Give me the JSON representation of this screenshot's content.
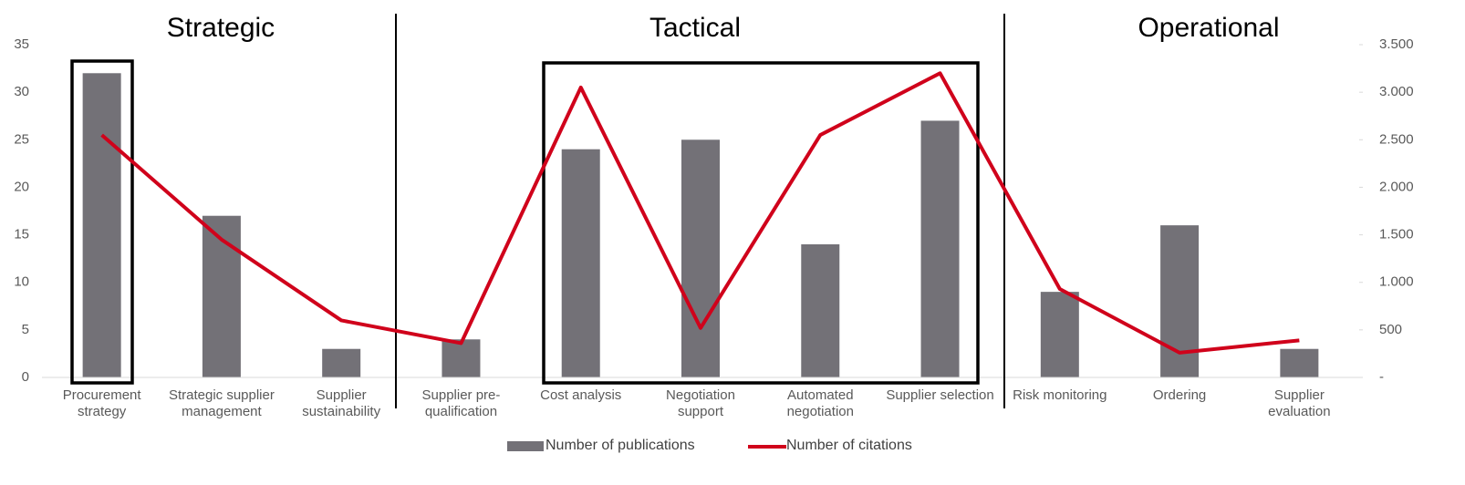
{
  "chart_data": {
    "type": "bar",
    "annotations": [
      "Strategic",
      "Tactical",
      "Operational"
    ],
    "categories": [
      "Procurement strategy",
      "Strategic supplier management",
      "Supplier sustainability",
      "Supplier pre-qualification",
      "Cost analysis",
      "Negotiation support",
      "Automated negotiation",
      "Supplier selection",
      "Risk monitoring",
      "Ordering",
      "Supplier evaluation"
    ],
    "series": [
      {
        "name": "Number of publications",
        "type": "bar",
        "color": "#737177",
        "values": [
          32,
          17,
          3,
          4,
          24,
          25,
          14,
          27,
          9,
          16,
          3
        ]
      },
      {
        "name": "Number of citations",
        "type": "line",
        "axis": "y2",
        "color": "#d0021b",
        "values": [
          2550,
          1450,
          600,
          360,
          3050,
          520,
          2550,
          3200,
          930,
          260,
          390
        ]
      }
    ],
    "ylim": [
      0,
      35
    ],
    "yticks": [
      0,
      5,
      10,
      15,
      20,
      25,
      30,
      35
    ],
    "y2lim": [
      0,
      3500
    ],
    "y2ticks": [
      {
        "value": 0,
        "label": "-"
      },
      500,
      {
        "value": 1000,
        "label": "1.000"
      },
      {
        "value": 1500,
        "label": "1.500"
      },
      {
        "value": 2000,
        "label": "2.000"
      },
      {
        "value": 2500,
        "label": "2.500"
      },
      {
        "value": 3000,
        "label": "3.000"
      },
      {
        "value": 3500,
        "label": "3.500"
      }
    ],
    "legend": "bottom"
  }
}
